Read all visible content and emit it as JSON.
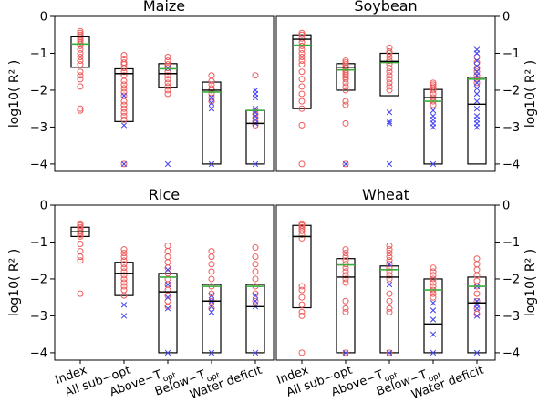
{
  "chart_data": [
    {
      "type": "box",
      "title": "Maize",
      "ylabel": "log10( R² )",
      "ylim": [
        -4.2,
        0
      ],
      "yticks": [
        0,
        -1,
        -2,
        -3,
        -4
      ],
      "categories": [
        "Index",
        "All sub−opt",
        "Above−T_opt",
        "Below−T_opt",
        "Water deficit"
      ],
      "boxes": [
        {
          "low": -1.38,
          "high": -0.55,
          "median": -0.55,
          "mean": -0.75
        },
        {
          "low": -2.85,
          "high": -1.42,
          "median": -1.55,
          "mean": -1.55
        },
        {
          "low": -1.92,
          "high": -1.28,
          "median": -1.55,
          "mean": -1.42
        },
        {
          "low": -4.0,
          "high": -1.78,
          "median": -2.0,
          "mean": -2.05
        },
        {
          "low": -4.0,
          "high": -2.55,
          "median": -2.9,
          "mean": -2.55
        }
      ],
      "circles": [
        [
          -0.4,
          -0.45,
          -0.5,
          -0.55,
          -0.6,
          -0.65,
          -0.7,
          -0.75,
          -0.8,
          -0.9,
          -1.0,
          -1.1,
          -1.2,
          -1.3,
          -1.5,
          -1.6,
          -1.7,
          -1.9,
          -2.5,
          -2.55
        ],
        [
          -1.05,
          -1.15,
          -1.25,
          -1.3,
          -1.4,
          -1.5,
          -1.6,
          -1.75,
          -1.85,
          -1.95,
          -2.05,
          -2.15,
          -2.3,
          -2.4,
          -2.5,
          -2.6,
          -2.7,
          -2.8,
          -4.0
        ],
        [
          -1.1,
          -1.2,
          -1.3,
          -1.35,
          -1.4,
          -1.5,
          -1.6,
          -1.7,
          -1.8,
          -1.9,
          -2.0,
          -2.1
        ],
        [
          -1.6,
          -1.75,
          -1.85,
          -1.95,
          -2.0,
          -2.1,
          -2.2,
          -2.3
        ],
        [
          -1.6,
          -2.55,
          -2.65,
          -2.75,
          -2.85,
          -2.95
        ]
      ],
      "crosses": [
        [],
        [
          -2.15,
          -2.95,
          -4.0
        ],
        [
          -1.4,
          -4.0
        ],
        [
          -2.2,
          -2.35,
          -2.5,
          -4.0
        ],
        [
          -2.0,
          -2.1,
          -2.2,
          -2.5,
          -2.6,
          -2.7,
          -2.8,
          -2.9,
          -4.0
        ]
      ]
    },
    {
      "type": "box",
      "title": "Soybean",
      "ylabel": "log10( R² )",
      "ylim": [
        -4.2,
        0
      ],
      "yticks": [
        0,
        -1,
        -2,
        -3,
        -4
      ],
      "categories": [
        "Index",
        "All sub−opt",
        "Above−T_opt",
        "Below−T_opt",
        "Water deficit"
      ],
      "boxes": [
        {
          "low": -2.5,
          "high": -0.5,
          "median": -0.62,
          "mean": -0.78
        },
        {
          "low": -2.0,
          "high": -1.28,
          "median": -1.38,
          "mean": -1.45
        },
        {
          "low": -2.15,
          "high": -1.0,
          "median": -1.22,
          "mean": -1.25
        },
        {
          "low": -4.0,
          "high": -1.98,
          "median": -2.2,
          "mean": -2.3
        },
        {
          "low": -4.0,
          "high": -1.65,
          "median": -2.38,
          "mean": -1.7
        }
      ],
      "circles": [
        [
          -0.45,
          -0.5,
          -0.6,
          -0.7,
          -0.8,
          -0.9,
          -1.0,
          -1.1,
          -1.2,
          -1.3,
          -1.5,
          -1.7,
          -1.9,
          -2.1,
          -2.3,
          -2.5,
          -2.95,
          -4.0
        ],
        [
          -1.2,
          -1.25,
          -1.3,
          -1.35,
          -1.4,
          -1.45,
          -1.5,
          -1.55,
          -1.6,
          -1.65,
          -1.7,
          -1.8,
          -1.9,
          -2.0,
          -2.3,
          -2.4,
          -2.9,
          -4.0
        ],
        [
          -0.85,
          -0.95,
          -1.0,
          -1.1,
          -1.2,
          -1.3,
          -1.4,
          -1.5,
          -1.6,
          -1.7,
          -1.8,
          -1.9,
          -2.0
        ],
        [
          -1.8,
          -1.85,
          -1.9,
          -1.95,
          -2.0,
          -2.1,
          -2.2,
          -2.3,
          -2.4
        ],
        [
          -1.1,
          -1.25,
          -1.4,
          -1.5,
          -1.6,
          -1.7,
          -1.8
        ]
      ],
      "crosses": [
        [],
        [
          -4.0
        ],
        [
          -2.6,
          -2.85,
          -2.9,
          -4.0
        ],
        [
          -2.55,
          -2.7,
          -2.8,
          -2.9,
          -3.0,
          -4.0
        ],
        [
          -0.9,
          -1.0,
          -1.2,
          -1.35,
          -1.5,
          -1.6,
          -1.8,
          -1.95,
          -2.1,
          -2.3,
          -2.5,
          -2.7,
          -2.8,
          -2.9,
          -3.0
        ]
      ]
    },
    {
      "type": "box",
      "title": "Rice",
      "ylabel": "log10( R² )",
      "ylim": [
        -4.2,
        0
      ],
      "yticks": [
        0,
        -1,
        -2,
        -3,
        -4
      ],
      "categories": [
        "Index",
        "All sub−opt",
        "Above−T_opt",
        "Below−T_opt",
        "Water deficit"
      ],
      "boxes": [
        {
          "low": -0.85,
          "high": -0.6,
          "median": -0.72,
          "mean": -0.72
        },
        {
          "low": -2.45,
          "high": -1.55,
          "median": -1.85,
          "mean": -1.85
        },
        {
          "low": -4.0,
          "high": -1.85,
          "median": -2.35,
          "mean": -1.95
        },
        {
          "low": -4.0,
          "high": -2.15,
          "median": -2.6,
          "mean": -2.2
        },
        {
          "low": -4.0,
          "high": -2.15,
          "median": -2.75,
          "mean": -2.2
        }
      ],
      "circles": [
        [
          -0.5,
          -0.55,
          -0.6,
          -0.65,
          -0.7,
          -0.75,
          -0.8,
          -0.85,
          -1.05,
          -1.25,
          -1.4,
          -1.5,
          -2.4
        ],
        [
          -1.2,
          -1.3,
          -1.4,
          -1.5,
          -1.6,
          -1.7,
          -1.8,
          -1.9,
          -2.0,
          -2.1,
          -2.2,
          -2.3,
          -2.45
        ],
        [
          -1.1,
          -1.25,
          -1.4,
          -1.55,
          -1.7,
          -1.85,
          -2.0,
          -2.15,
          -2.3,
          -2.45,
          -2.6,
          -2.75
        ],
        [
          -1.25,
          -1.4,
          -1.6,
          -1.8,
          -2.0,
          -2.2,
          -2.4,
          -2.6,
          -2.8
        ],
        [
          -1.15,
          -1.4,
          -1.6,
          -1.8,
          -2.0,
          -2.2,
          -2.4,
          -2.6
        ]
      ],
      "crosses": [
        [],
        [
          -2.7,
          -3.0
        ],
        [
          -1.75,
          -2.15,
          -2.5,
          -2.8,
          -4.0
        ],
        [
          -2.45,
          -2.6,
          -2.75,
          -2.9,
          -4.0
        ],
        [
          -2.45,
          -2.6,
          -2.75,
          -4.0
        ]
      ]
    },
    {
      "type": "box",
      "title": "Wheat",
      "ylabel": "log10( R² )",
      "ylim": [
        -4.2,
        0
      ],
      "yticks": [
        0,
        -1,
        -2,
        -3,
        -4
      ],
      "categories": [
        "Index",
        "All sub−opt",
        "Above−T_opt",
        "Below−T_opt",
        "Water deficit"
      ],
      "boxes": [
        {
          "low": -2.78,
          "high": -0.55,
          "median": -0.85,
          "mean": -0.85
        },
        {
          "low": -4.0,
          "high": -1.45,
          "median": -1.95,
          "mean": -1.62
        },
        {
          "low": -4.0,
          "high": -1.65,
          "median": -1.95,
          "mean": -1.75
        },
        {
          "low": -4.0,
          "high": -2.0,
          "median": -3.22,
          "mean": -2.3
        },
        {
          "low": -4.0,
          "high": -1.95,
          "median": -2.65,
          "mean": -2.2
        }
      ],
      "circles": [
        [
          -0.5,
          -0.55,
          -0.6,
          -0.65,
          -0.7,
          -0.8,
          -0.9,
          -2.2,
          -2.3,
          -2.5,
          -2.7,
          -2.9,
          -3.0,
          -4.0
        ],
        [
          -1.2,
          -1.3,
          -1.4,
          -1.5,
          -1.6,
          -1.7,
          -1.8,
          -1.9,
          -2.0,
          -2.1,
          -2.6,
          -2.8,
          -2.9,
          -4.0
        ],
        [
          -1.1,
          -1.2,
          -1.3,
          -1.4,
          -1.5,
          -1.6,
          -1.7,
          -1.8,
          -1.9,
          -2.0,
          -2.4,
          -2.6,
          -2.8,
          -2.9,
          -4.0
        ],
        [
          -1.7,
          -1.8,
          -1.9,
          -2.0,
          -2.1,
          -2.2,
          -2.3,
          -2.4,
          -2.5
        ],
        [
          -1.45,
          -1.6,
          -1.75,
          -1.9,
          -2.05,
          -2.2,
          -2.4,
          -2.6,
          -2.8,
          -2.95
        ]
      ],
      "crosses": [
        [],
        [
          -4.0
        ],
        [
          -1.6,
          -2.15,
          -4.0
        ],
        [
          -2.65,
          -2.85,
          -3.1,
          -3.5,
          -4.0
        ],
        [
          -2.2,
          -2.6,
          -2.7,
          -2.8,
          -3.0,
          -4.0
        ]
      ]
    }
  ]
}
